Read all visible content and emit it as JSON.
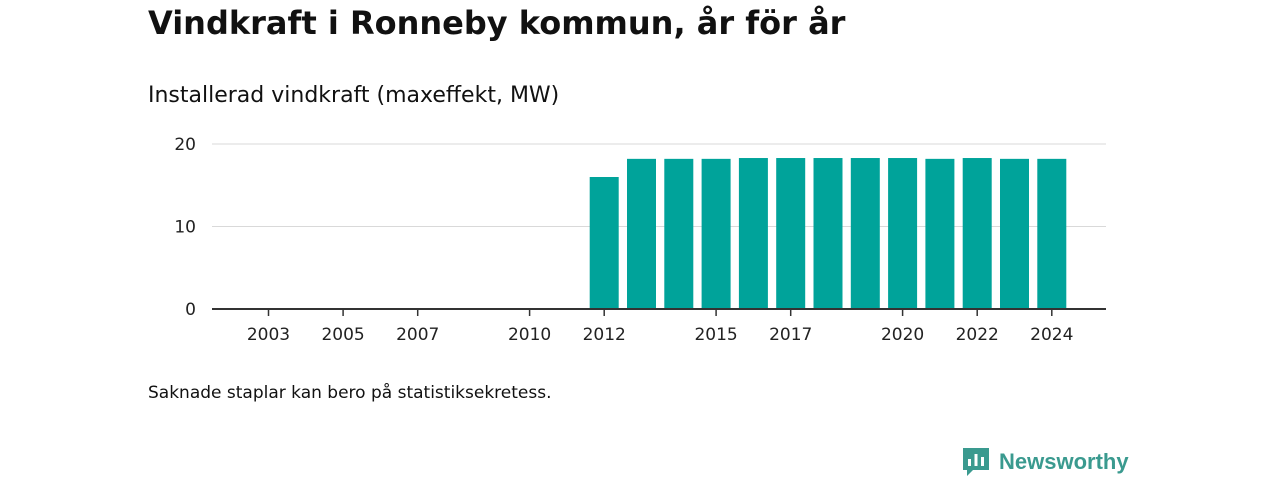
{
  "title": "Vindkraft i Ronneby kommun, år för år",
  "subtitle": "Installerad vindkraft (maxeffekt, MW)",
  "note": "Saknade staplar kan bero på statistiksekretess.",
  "brand": {
    "name": "Newsworthy",
    "icon": "newsworthy-logo-icon",
    "color": "#3a9a8f"
  },
  "chart_data": {
    "type": "bar",
    "categories": [
      2003,
      2004,
      2005,
      2006,
      2007,
      2008,
      2009,
      2010,
      2011,
      2012,
      2013,
      2014,
      2015,
      2016,
      2017,
      2018,
      2019,
      2020,
      2021,
      2022,
      2023,
      2024
    ],
    "values": [
      null,
      null,
      null,
      null,
      null,
      null,
      null,
      null,
      null,
      16,
      18.2,
      18.2,
      18.2,
      18.3,
      18.3,
      18.3,
      18.3,
      18.3,
      18.2,
      18.3,
      18.2,
      18.2
    ],
    "xtick_labels": [
      "2003",
      "2005",
      "2007",
      "2010",
      "2012",
      "2015",
      "2017",
      "2020",
      "2022",
      "2024"
    ],
    "yticks": [
      0,
      10,
      20
    ],
    "ylim": [
      0,
      20
    ],
    "bar_color": "#00a39a",
    "grid": true
  }
}
